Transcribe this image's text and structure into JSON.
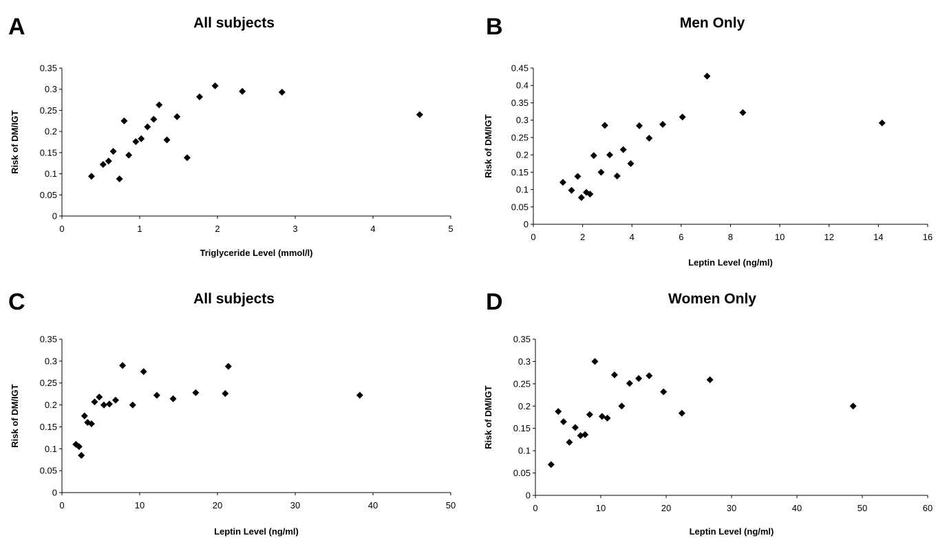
{
  "chart_data": [
    {
      "panel": "A",
      "type": "scatter",
      "title": "All subjects",
      "xlabel": "Triglyceride Level (mmol/l)",
      "ylabel": "Risk of DM/IGT",
      "xlim": [
        0,
        5
      ],
      "ylim": [
        0,
        0.35
      ],
      "xticks": [
        0,
        1,
        2,
        3,
        4,
        5
      ],
      "yticks": [
        0,
        0.05,
        0.1,
        0.15,
        0.2,
        0.25,
        0.3,
        0.35
      ],
      "grid": false,
      "points": [
        [
          0.38,
          0.094
        ],
        [
          0.53,
          0.122
        ],
        [
          0.6,
          0.13
        ],
        [
          0.66,
          0.153
        ],
        [
          0.74,
          0.088
        ],
        [
          0.8,
          0.225
        ],
        [
          0.86,
          0.144
        ],
        [
          0.95,
          0.176
        ],
        [
          1.02,
          0.183
        ],
        [
          1.1,
          0.211
        ],
        [
          1.18,
          0.229
        ],
        [
          1.25,
          0.263
        ],
        [
          1.35,
          0.18
        ],
        [
          1.48,
          0.235
        ],
        [
          1.61,
          0.138
        ],
        [
          1.77,
          0.282
        ],
        [
          1.97,
          0.308
        ],
        [
          2.32,
          0.295
        ],
        [
          2.83,
          0.293
        ],
        [
          4.6,
          0.24
        ]
      ]
    },
    {
      "panel": "B",
      "type": "scatter",
      "title": "Men Only",
      "xlabel": "Leptin Level (ng/ml)",
      "ylabel": "Risk of DM/IGT",
      "xlim": [
        0,
        16
      ],
      "ylim": [
        0,
        0.45
      ],
      "xticks": [
        0,
        2,
        4,
        6,
        8,
        10,
        12,
        14,
        16
      ],
      "yticks": [
        0,
        0.05,
        0.1,
        0.15,
        0.2,
        0.25,
        0.3,
        0.35,
        0.4,
        0.45
      ],
      "grid": false,
      "points": [
        [
          1.2,
          0.121
        ],
        [
          1.55,
          0.098
        ],
        [
          1.8,
          0.138
        ],
        [
          1.95,
          0.077
        ],
        [
          2.15,
          0.092
        ],
        [
          2.3,
          0.087
        ],
        [
          2.45,
          0.198
        ],
        [
          2.75,
          0.15
        ],
        [
          2.9,
          0.285
        ],
        [
          3.1,
          0.2
        ],
        [
          3.4,
          0.139
        ],
        [
          3.65,
          0.215
        ],
        [
          3.95,
          0.175
        ],
        [
          4.3,
          0.284
        ],
        [
          4.7,
          0.248
        ],
        [
          5.25,
          0.288
        ],
        [
          6.05,
          0.309
        ],
        [
          7.05,
          0.427
        ],
        [
          8.5,
          0.322
        ],
        [
          14.15,
          0.292
        ]
      ]
    },
    {
      "panel": "C",
      "type": "scatter",
      "title": "All subjects",
      "xlabel": "Leptin Level (ng/ml)",
      "ylabel": "Risk of DM/IGT",
      "xlim": [
        0,
        50
      ],
      "ylim": [
        0,
        0.35
      ],
      "xticks": [
        0,
        10,
        20,
        30,
        40,
        50
      ],
      "yticks": [
        0,
        0.05,
        0.1,
        0.15,
        0.2,
        0.25,
        0.3,
        0.35
      ],
      "grid": false,
      "points": [
        [
          1.8,
          0.11
        ],
        [
          2.2,
          0.105
        ],
        [
          2.5,
          0.085
        ],
        [
          2.9,
          0.175
        ],
        [
          3.3,
          0.16
        ],
        [
          3.8,
          0.157
        ],
        [
          4.2,
          0.207
        ],
        [
          4.8,
          0.218
        ],
        [
          5.4,
          0.2
        ],
        [
          6.1,
          0.202
        ],
        [
          6.9,
          0.211
        ],
        [
          7.8,
          0.29
        ],
        [
          9.1,
          0.2
        ],
        [
          10.5,
          0.276
        ],
        [
          12.2,
          0.222
        ],
        [
          14.3,
          0.214
        ],
        [
          17.2,
          0.228
        ],
        [
          21.0,
          0.226
        ],
        [
          21.4,
          0.288
        ],
        [
          38.3,
          0.222
        ]
      ]
    },
    {
      "panel": "D",
      "type": "scatter",
      "title": "Women Only",
      "xlabel": "Leptin Level (ng/ml)",
      "ylabel": "Risk of DM/IGT",
      "xlim": [
        0,
        60
      ],
      "ylim": [
        0,
        0.35
      ],
      "xticks": [
        0,
        10,
        20,
        30,
        40,
        50,
        60
      ],
      "yticks": [
        0,
        0.05,
        0.1,
        0.15,
        0.2,
        0.25,
        0.3,
        0.35
      ],
      "grid": false,
      "points": [
        [
          2.4,
          0.069
        ],
        [
          3.5,
          0.188
        ],
        [
          4.3,
          0.165
        ],
        [
          5.2,
          0.119
        ],
        [
          6.1,
          0.152
        ],
        [
          6.9,
          0.134
        ],
        [
          7.6,
          0.136
        ],
        [
          8.3,
          0.181
        ],
        [
          9.1,
          0.3
        ],
        [
          10.2,
          0.177
        ],
        [
          11.0,
          0.173
        ],
        [
          12.1,
          0.27
        ],
        [
          13.2,
          0.2
        ],
        [
          14.4,
          0.251
        ],
        [
          15.8,
          0.262
        ],
        [
          17.4,
          0.268
        ],
        [
          19.6,
          0.232
        ],
        [
          22.4,
          0.184
        ],
        [
          26.7,
          0.259
        ],
        [
          48.6,
          0.2
        ]
      ]
    }
  ]
}
